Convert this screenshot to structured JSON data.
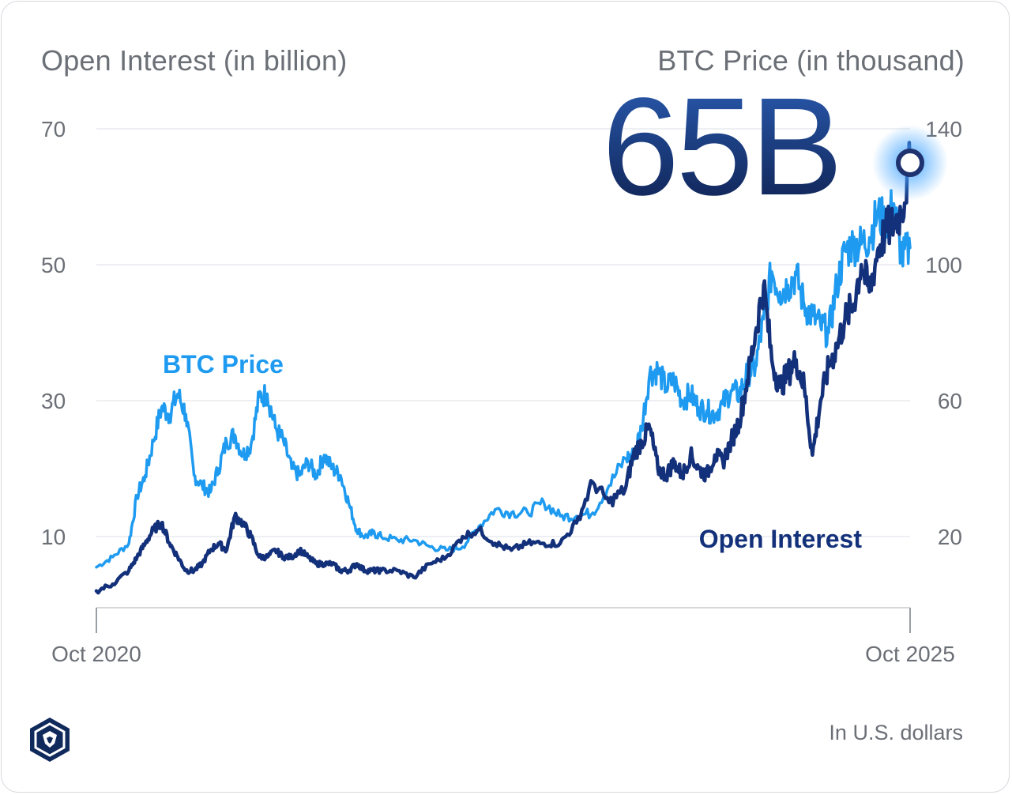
{
  "chart_data": {
    "type": "line",
    "title": "65B",
    "left_axis_title": "Open Interest (in billion)",
    "right_axis_title": "BTC Price (in thousand)",
    "y_left": {
      "ticks": [
        10,
        30,
        50,
        70
      ],
      "range": [
        0,
        70
      ]
    },
    "y_right": {
      "ticks": [
        20,
        60,
        100,
        140
      ],
      "range": [
        0,
        140
      ]
    },
    "x_ticks": [
      "Oct 2020",
      "Oct 2025"
    ],
    "x_range": [
      2020.75,
      2025.75
    ],
    "footnote": "In U.S. dollars",
    "highlight": {
      "series": "Open Interest",
      "x": 2025.75,
      "value": 65,
      "label": "65B"
    },
    "series": [
      {
        "name": "BTC Price",
        "axis": "right",
        "color": "#1e9bf0",
        "label": "BTC Price",
        "x": [
          2020.75,
          2020.85,
          2020.95,
          2021.0,
          2021.05,
          2021.1,
          2021.15,
          2021.2,
          2021.25,
          2021.3,
          2021.35,
          2021.4,
          2021.45,
          2021.5,
          2021.55,
          2021.6,
          2021.65,
          2021.7,
          2021.75,
          2021.8,
          2021.85,
          2021.9,
          2021.95,
          2022.0,
          2022.05,
          2022.1,
          2022.15,
          2022.2,
          2022.25,
          2022.3,
          2022.35,
          2022.4,
          2022.45,
          2022.5,
          2022.6,
          2022.7,
          2022.8,
          2022.9,
          2023.0,
          2023.1,
          2023.2,
          2023.3,
          2023.4,
          2023.5,
          2023.6,
          2023.7,
          2023.8,
          2023.9,
          2024.0,
          2024.05,
          2024.1,
          2024.15,
          2024.2,
          2024.25,
          2024.3,
          2024.35,
          2024.4,
          2024.45,
          2024.5,
          2024.55,
          2024.6,
          2024.65,
          2024.7,
          2024.75,
          2024.8,
          2024.85,
          2024.9,
          2024.95,
          2025.0,
          2025.05,
          2025.1,
          2025.15,
          2025.2,
          2025.25,
          2025.3,
          2025.35,
          2025.4,
          2025.45,
          2025.5,
          2025.55,
          2025.6,
          2025.65,
          2025.7,
          2025.75
        ],
        "values": [
          11,
          14,
          18,
          32,
          38,
          48,
          58,
          56,
          62,
          56,
          38,
          35,
          33,
          40,
          48,
          50,
          44,
          47,
          61,
          62,
          52,
          48,
          40,
          38,
          42,
          38,
          44,
          40,
          38,
          30,
          22,
          20,
          21,
          20,
          19,
          19,
          17,
          16,
          17,
          23,
          28,
          27,
          27,
          30,
          26,
          26,
          27,
          35,
          43,
          44,
          52,
          68,
          69,
          64,
          66,
          60,
          62,
          58,
          57,
          56,
          59,
          63,
          62,
          68,
          70,
          84,
          98,
          92,
          94,
          97,
          88,
          85,
          82,
          80,
          94,
          104,
          106,
          106,
          108,
          115,
          112,
          118,
          102,
          105
        ]
      },
      {
        "name": "Open Interest",
        "axis": "left",
        "color": "#13307a",
        "label": "Open Interest",
        "x": [
          2020.75,
          2020.85,
          2020.95,
          2021.0,
          2021.05,
          2021.1,
          2021.15,
          2021.2,
          2021.25,
          2021.3,
          2021.35,
          2021.4,
          2021.45,
          2021.5,
          2021.55,
          2021.6,
          2021.65,
          2021.7,
          2021.75,
          2021.8,
          2021.85,
          2021.9,
          2021.95,
          2022.0,
          2022.05,
          2022.1,
          2022.15,
          2022.2,
          2022.25,
          2022.3,
          2022.35,
          2022.4,
          2022.45,
          2022.5,
          2022.6,
          2022.7,
          2022.8,
          2022.9,
          2023.0,
          2023.1,
          2023.2,
          2023.3,
          2023.4,
          2023.5,
          2023.6,
          2023.7,
          2023.8,
          2023.9,
          2024.0,
          2024.05,
          2024.1,
          2024.15,
          2024.2,
          2024.25,
          2024.3,
          2024.35,
          2024.4,
          2024.45,
          2024.5,
          2024.55,
          2024.6,
          2024.65,
          2024.7,
          2024.75,
          2024.8,
          2024.85,
          2024.9,
          2024.95,
          2025.0,
          2025.05,
          2025.1,
          2025.15,
          2025.2,
          2025.25,
          2025.3,
          2025.35,
          2025.4,
          2025.45,
          2025.5,
          2025.55,
          2025.6,
          2025.65,
          2025.7,
          2025.75
        ],
        "values": [
          2,
          3,
          5,
          7,
          9,
          11,
          12,
          9,
          7,
          5,
          5,
          6,
          8,
          9,
          8,
          13,
          12,
          10,
          7,
          7,
          8,
          7,
          7,
          8,
          7,
          6,
          6,
          6,
          5,
          5,
          6,
          5,
          5,
          5,
          5,
          4,
          6,
          7,
          10,
          11,
          9,
          8,
          9,
          9,
          9,
          12,
          18,
          15,
          17,
          22,
          24,
          26,
          20,
          19,
          21,
          19,
          22,
          20,
          19,
          22,
          21,
          24,
          27,
          33,
          40,
          47,
          36,
          32,
          34,
          36,
          32,
          22,
          30,
          35,
          38,
          42,
          44,
          50,
          46,
          52,
          55,
          56,
          58,
          65
        ]
      }
    ]
  }
}
